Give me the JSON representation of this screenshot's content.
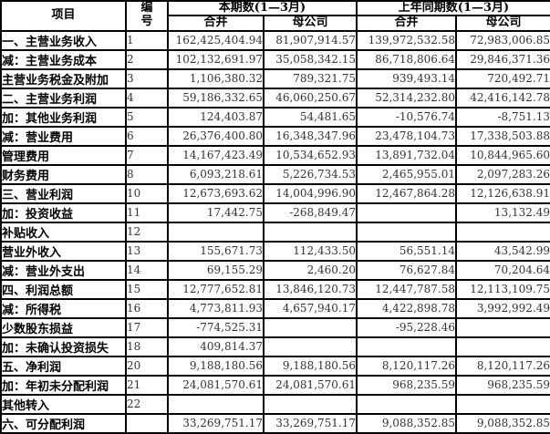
{
  "table": {
    "header": {
      "item": "项目",
      "no_lines": [
        "编",
        "号"
      ],
      "current_period": "本期数(1—3月)",
      "prior_period": "上年同期数(1—3月)",
      "sub_consolidated": "合并",
      "sub_parent": "母公司"
    },
    "rows": [
      {
        "label": "一、主营业务收入",
        "no": "1",
        "cur_cons": "162,425,404.94",
        "cur_parent": "81,907,914.57",
        "prior_cons": "139,972,532.58",
        "prior_parent": "72,983,006.85"
      },
      {
        "label": "减：主营业务成本",
        "no": "2",
        "cur_cons": "102,132,691.97",
        "cur_parent": "35,058,342.15",
        "prior_cons": "86,718,806.64",
        "prior_parent": "29,846,371.36"
      },
      {
        "label": "主营业务税金及附加",
        "no": "3",
        "cur_cons": "1,106,380.32",
        "cur_parent": "789,321.75",
        "prior_cons": "939,493.14",
        "prior_parent": "720,492.71"
      },
      {
        "label": "二、主营业务利润",
        "no": "4",
        "cur_cons": "59,186,332.65",
        "cur_parent": "46,060,250.67",
        "prior_cons": "52,314,232.80",
        "prior_parent": "42,416,142.78"
      },
      {
        "label": "加：其他业务利润",
        "no": "5",
        "cur_cons": "124,403.87",
        "cur_parent": "54,481.65",
        "prior_cons": "-10,576.74",
        "prior_parent": "-8,751.13"
      },
      {
        "label": "减：营业费用",
        "no": "6",
        "cur_cons": "26,376,400.80",
        "cur_parent": "16,348,347.96",
        "prior_cons": "23,478,104.73",
        "prior_parent": "17,338,503.88"
      },
      {
        "label": "管理费用",
        "no": "7",
        "cur_cons": "14,167,423.49",
        "cur_parent": "10,534,652.93",
        "prior_cons": "13,891,732.04",
        "prior_parent": "10,844,965.60"
      },
      {
        "label": "财务费用",
        "no": "8",
        "cur_cons": "6,093,218.61",
        "cur_parent": "5,226,734.53",
        "prior_cons": "2,465,955.01",
        "prior_parent": "2,097,283.26"
      },
      {
        "label": "三、营业利润",
        "no": "10",
        "cur_cons": "12,673,693.62",
        "cur_parent": "14,004,996.90",
        "prior_cons": "12,467,864.28",
        "prior_parent": "12,126,638.91"
      },
      {
        "label": "加：投资收益",
        "no": "11",
        "cur_cons": "17,442.75",
        "cur_parent": "-268,849.47",
        "prior_cons": "",
        "prior_parent": "13,132.49"
      },
      {
        "label": "补贴收入",
        "no": "12",
        "cur_cons": "",
        "cur_parent": "",
        "prior_cons": "",
        "prior_parent": ""
      },
      {
        "label": "营业外收入",
        "no": "13",
        "cur_cons": "155,671.73",
        "cur_parent": "112,433.50",
        "prior_cons": "56,551.14",
        "prior_parent": "43,542.99"
      },
      {
        "label": "减：营业外支出",
        "no": "14",
        "cur_cons": "69,155.29",
        "cur_parent": "2,460.20",
        "prior_cons": "76,627.84",
        "prior_parent": "70,204.64"
      },
      {
        "label": "四、利润总额",
        "no": "15",
        "cur_cons": "12,777,652.81",
        "cur_parent": "13,846,120.73",
        "prior_cons": "12,447,787.58",
        "prior_parent": "12,113,109.75"
      },
      {
        "label": "减：所得税",
        "no": "16",
        "cur_cons": "4,773,811.93",
        "cur_parent": "4,657,940.17",
        "prior_cons": "4,422,898.78",
        "prior_parent": "3,992,992.49"
      },
      {
        "label": "少数股东损益",
        "no": "17",
        "cur_cons": "-774,525.31",
        "cur_parent": "",
        "prior_cons": "-95,228.46",
        "prior_parent": ""
      },
      {
        "label": "加：未确认投资损失",
        "no": "18",
        "cur_cons": "409,814.37",
        "cur_parent": "",
        "prior_cons": "",
        "prior_parent": ""
      },
      {
        "label": "五、净利润",
        "no": "20",
        "cur_cons": "9,188,180.56",
        "cur_parent": "9,188,180.56",
        "prior_cons": "8,120,117.26",
        "prior_parent": "8,120,117.26"
      },
      {
        "label": "加：年初未分配利润",
        "no": "21",
        "cur_cons": "24,081,570.61",
        "cur_parent": "24,081,570.61",
        "prior_cons": "968,235.59",
        "prior_parent": "968,235.59"
      },
      {
        "label": "其他转入",
        "no": "22",
        "cur_cons": "",
        "cur_parent": "",
        "prior_cons": "",
        "prior_parent": ""
      },
      {
        "label": "六、可分配利润",
        "no": "",
        "cur_cons": "33,269,751.17",
        "cur_parent": "33,269,751.17",
        "prior_cons": "9,088,352.85",
        "prior_parent": "9,088,352.85"
      }
    ]
  }
}
